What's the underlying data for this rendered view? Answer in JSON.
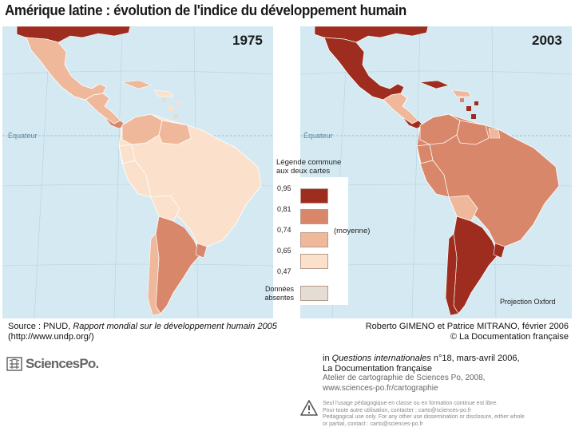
{
  "title": "Amérique latine : évolution de l'indice du développement humain",
  "maps": [
    {
      "year": "1975",
      "equator_label": "Équateur"
    },
    {
      "year": "2003",
      "equator_label": "Équateur"
    }
  ],
  "legend": {
    "title_line1": "Légende commune",
    "title_line2": "aux deux cartes",
    "thresholds": [
      "0,95",
      "0,81",
      "0,74",
      "0,65",
      "0,47"
    ],
    "classes": [
      {
        "color": "#9e2d1f"
      },
      {
        "color": "#d9876a"
      },
      {
        "color": "#f0b89a"
      },
      {
        "color": "#fbe1cc"
      },
      {
        "color": "#e3ddd3"
      }
    ],
    "average_label": "(moyenne)",
    "no_data_line1": "Données",
    "no_data_line2": "absentes"
  },
  "projection": "Projection Oxford",
  "source": {
    "prefix": "Source : PNUD, ",
    "report": "Rapport mondial sur le développement humain 2005",
    "url": "(http://www.undp.org/)"
  },
  "authors": {
    "line1": "Roberto GIMENO et Patrice MITRANO, février 2006",
    "line2": "© La Documentation française"
  },
  "publication": {
    "prefix": "in ",
    "journal": "Questions internationales",
    "issue": " n°18, mars-avril 2006,",
    "publisher": "La Documentation française",
    "atelier": "Atelier de cartographie de Sciences Po, 2008,",
    "site": "www.sciences-po.fr/cartographie"
  },
  "logo_text": "SciencesPo.",
  "usage_notice": {
    "line1": "Seul l'usage pédagogique en classe ou en formation continue est libre.",
    "line2": "Pour toute autre utilisation, contacter : carto@sciences-po.fr",
    "line3": "Pedagogical use only. For any other use dissemination or disclosure, either whole",
    "line4": "or partial, contact : carto@sciences-po.fr"
  }
}
